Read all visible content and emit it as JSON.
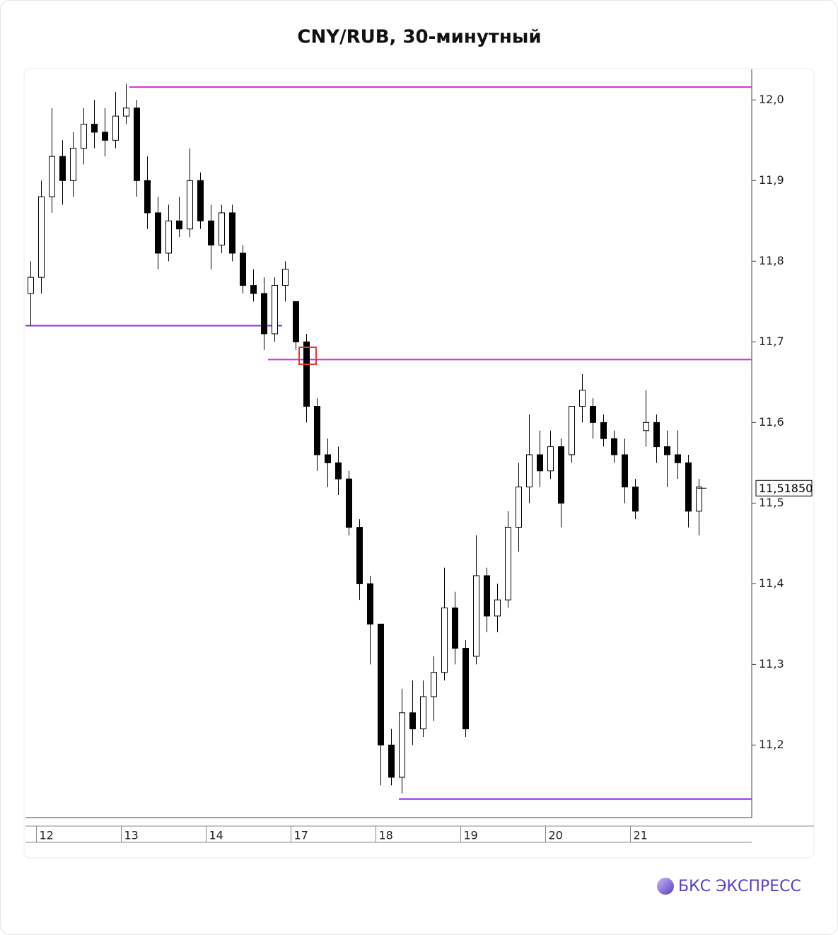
{
  "chart_data": {
    "type": "candlestick",
    "title": "CNY/RUB, 30-минутный",
    "categories": [
      null,
      "12",
      null,
      null,
      null,
      null,
      null,
      null,
      null,
      "13",
      null,
      null,
      null,
      null,
      null,
      null,
      null,
      "14",
      null,
      null,
      null,
      null,
      null,
      null,
      null,
      "17",
      null,
      null,
      null,
      null,
      null,
      null,
      null,
      "18",
      null,
      null,
      null,
      null,
      null,
      null,
      null,
      "19",
      null,
      null,
      null,
      null,
      null,
      null,
      null,
      "20",
      null,
      null,
      null,
      null,
      null,
      null,
      null,
      "21",
      null,
      null,
      null,
      null,
      null,
      null
    ],
    "open": [
      11.76,
      11.78,
      11.88,
      11.93,
      11.9,
      11.94,
      11.97,
      11.96,
      11.95,
      11.98,
      11.99,
      11.9,
      11.86,
      11.81,
      11.85,
      11.84,
      11.9,
      11.85,
      11.82,
      11.86,
      11.81,
      11.77,
      11.76,
      11.71,
      11.77,
      11.75,
      11.7,
      11.62,
      11.56,
      11.55,
      11.53,
      11.47,
      11.4,
      11.35,
      11.2,
      11.16,
      11.24,
      11.22,
      11.26,
      11.29,
      11.37,
      11.32,
      11.31,
      11.41,
      11.36,
      11.38,
      11.47,
      11.52,
      11.56,
      11.54,
      11.57,
      11.56,
      11.62,
      11.62,
      11.6,
      11.58,
      11.56,
      11.52,
      11.59,
      11.6,
      11.57,
      11.56,
      11.55,
      11.49
    ],
    "high": [
      11.8,
      11.9,
      11.99,
      11.95,
      11.96,
      11.99,
      12.0,
      11.99,
      12.01,
      12.02,
      12.0,
      11.93,
      11.88,
      11.87,
      11.88,
      11.94,
      11.91,
      11.87,
      11.87,
      11.87,
      11.82,
      11.79,
      11.78,
      11.78,
      11.8,
      11.75,
      11.71,
      11.63,
      11.58,
      11.57,
      11.54,
      11.48,
      11.41,
      11.35,
      11.22,
      11.27,
      11.28,
      11.28,
      11.31,
      11.42,
      11.39,
      11.33,
      11.46,
      11.42,
      11.4,
      11.49,
      11.55,
      11.61,
      11.59,
      11.59,
      11.58,
      11.62,
      11.66,
      11.63,
      11.61,
      11.59,
      11.58,
      11.53,
      11.64,
      11.61,
      11.59,
      11.59,
      11.56,
      11.53
    ],
    "low": [
      11.72,
      11.76,
      11.86,
      11.87,
      11.88,
      11.92,
      11.94,
      11.93,
      11.94,
      11.97,
      11.88,
      11.84,
      11.79,
      11.8,
      11.83,
      11.83,
      11.84,
      11.79,
      11.81,
      11.8,
      11.76,
      11.75,
      11.69,
      11.7,
      11.75,
      11.69,
      11.6,
      11.54,
      11.52,
      11.51,
      11.46,
      11.38,
      11.3,
      11.15,
      11.15,
      11.14,
      11.2,
      11.21,
      11.23,
      11.28,
      11.3,
      11.21,
      11.3,
      11.34,
      11.34,
      11.37,
      11.44,
      11.5,
      11.52,
      11.53,
      11.47,
      11.55,
      11.6,
      11.58,
      11.57,
      11.55,
      11.5,
      11.48,
      11.57,
      11.55,
      11.52,
      11.53,
      11.47,
      11.46
    ],
    "close": [
      11.78,
      11.88,
      11.93,
      11.9,
      11.94,
      11.97,
      11.96,
      11.95,
      11.98,
      11.99,
      11.9,
      11.86,
      11.81,
      11.85,
      11.84,
      11.9,
      11.85,
      11.82,
      11.86,
      11.81,
      11.77,
      11.76,
      11.71,
      11.77,
      11.79,
      11.7,
      11.62,
      11.56,
      11.55,
      11.53,
      11.47,
      11.4,
      11.35,
      11.2,
      11.16,
      11.24,
      11.22,
      11.26,
      11.29,
      11.37,
      11.32,
      11.22,
      11.41,
      11.36,
      11.38,
      11.47,
      11.52,
      11.56,
      11.54,
      11.57,
      11.5,
      11.62,
      11.64,
      11.6,
      11.58,
      11.56,
      11.52,
      11.49,
      11.6,
      11.57,
      11.56,
      11.55,
      11.49,
      11.52
    ],
    "up_color": "#ffffff",
    "down_color": "#000000",
    "levels": [
      {
        "value": 12.016,
        "color": "#cc33cc"
      },
      {
        "value": 11.72,
        "color": "#8a2be2"
      },
      {
        "value": 11.678,
        "color": "#cc33cc"
      },
      {
        "value": 11.133,
        "color": "#8a2be2"
      }
    ],
    "last_price": {
      "value": 11.5185,
      "label": "11,51850"
    },
    "ylim": [
      11.11,
      12.038
    ],
    "yticks": [
      {
        "value": 11.2,
        "label": "11,2"
      },
      {
        "value": 11.3,
        "label": "11,3"
      },
      {
        "value": 11.4,
        "label": "11,4"
      },
      {
        "value": 11.5,
        "label": "11,5"
      },
      {
        "value": 11.6,
        "label": "11,6"
      },
      {
        "value": 11.7,
        "label": "11,7"
      },
      {
        "value": 11.8,
        "label": "11,8"
      },
      {
        "value": 11.9,
        "label": "11,9"
      },
      {
        "value": 12.0,
        "label": "12,0"
      }
    ],
    "brand": "БКС ЭКСПРЕСС"
  }
}
